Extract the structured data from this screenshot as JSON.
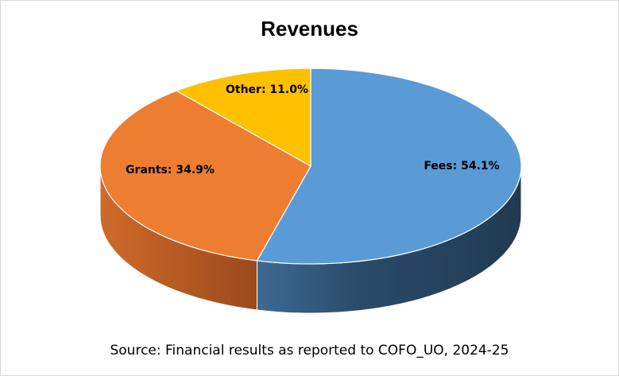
{
  "chart_data": {
    "type": "pie",
    "style": "3d",
    "title": "Revenues",
    "categories": [
      "Fees",
      "Grants",
      "Other"
    ],
    "values": [
      54.1,
      34.9,
      11.0
    ],
    "unit": "%",
    "labels": [
      "Fees: 54.1%",
      "Grants: 34.9%",
      "Other: 11.0%"
    ],
    "colors": [
      "#5B9BD5",
      "#ED7D31",
      "#FFC000"
    ],
    "start_angle": "top, clockwise",
    "legend": "none",
    "source": "Source: Financial results as reported to COFO_UO, 2024-25"
  }
}
